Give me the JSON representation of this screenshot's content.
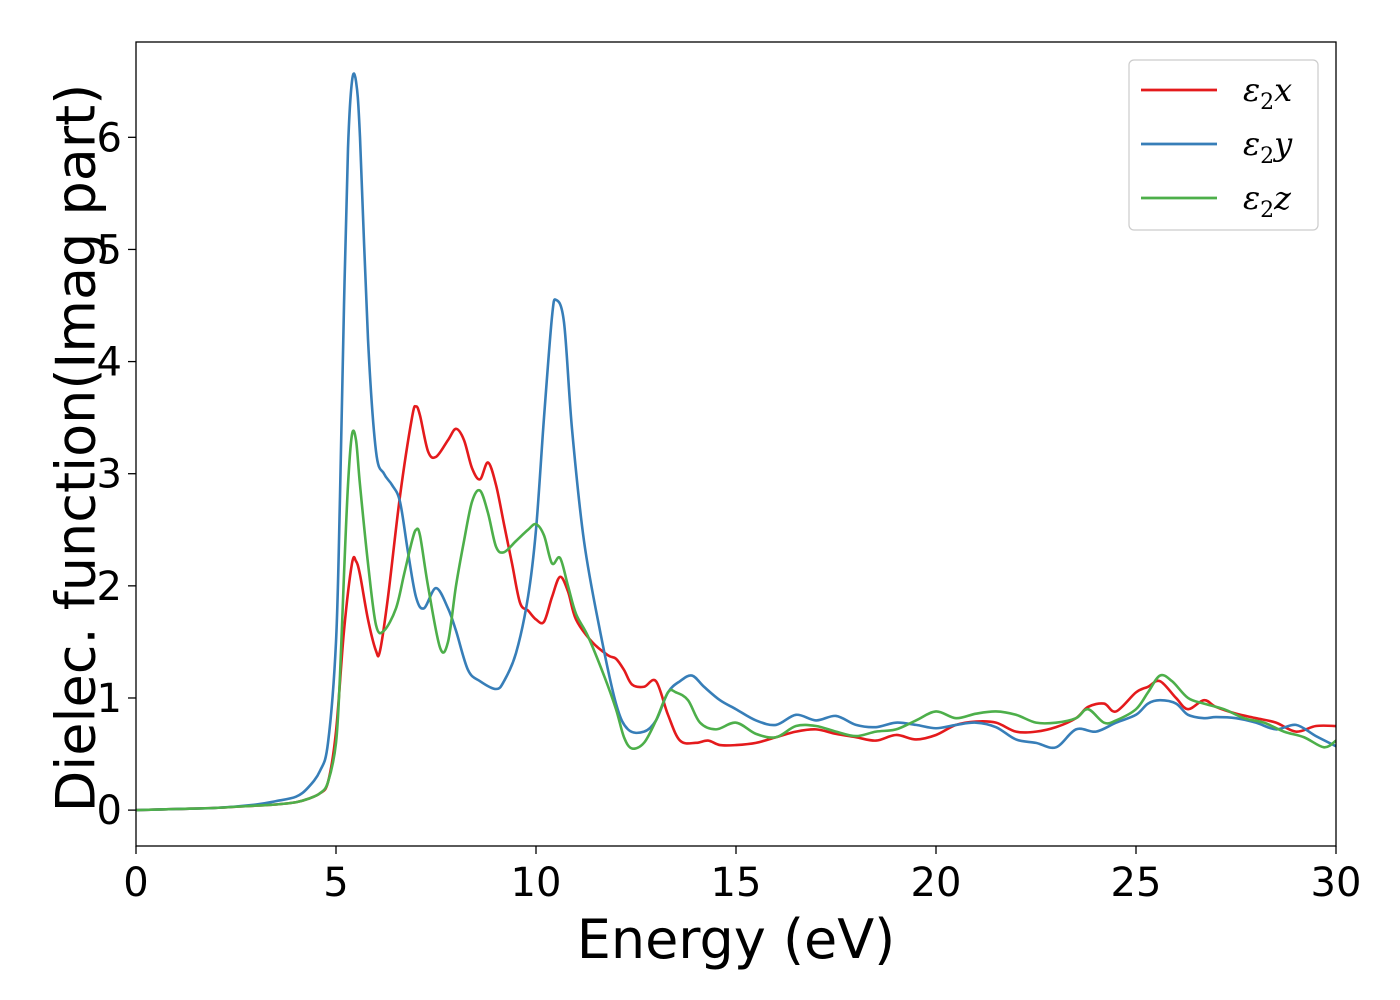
{
  "chart_data": {
    "type": "line",
    "title": "",
    "xlabel": "Energy (eV)",
    "ylabel": "Dielec. function(Imag part)",
    "xlim": [
      0,
      30
    ],
    "ylim": [
      -0.32,
      6.85
    ],
    "xticks": [
      0,
      5,
      10,
      15,
      20,
      25,
      30
    ],
    "yticks": [
      0,
      1,
      2,
      3,
      4,
      5,
      6
    ],
    "grid": false,
    "legend": "top-right",
    "series": [
      {
        "name": "ε₂x",
        "name_base": "ε",
        "name_sub": "2",
        "name_suffix": "x",
        "color": "#e41a1c",
        "x": [
          0,
          1,
          2,
          3,
          3.5,
          4,
          4.3,
          4.6,
          4.8,
          5,
          5.2,
          5.4,
          5.5,
          5.6,
          5.8,
          6,
          6.1,
          6.3,
          6.6,
          6.9,
          7,
          7.1,
          7.3,
          7.5,
          7.8,
          8,
          8.2,
          8.4,
          8.6,
          8.8,
          9,
          9.2,
          9.4,
          9.6,
          9.8,
          10,
          10.2,
          10.4,
          10.6,
          10.8,
          11,
          11.4,
          11.8,
          12,
          12.2,
          12.4,
          12.7,
          13,
          13.3,
          13.6,
          14,
          14.3,
          14.6,
          15,
          15.5,
          16,
          16.5,
          17,
          17.5,
          18,
          18.5,
          19,
          19.5,
          20,
          20.5,
          21,
          21.5,
          22,
          22.5,
          23,
          23.5,
          23.8,
          24.2,
          24.5,
          25,
          25.3,
          25.6,
          26,
          26.3,
          26.7,
          27,
          27.5,
          28,
          28.5,
          29,
          29.5,
          30
        ],
        "values": [
          0.0,
          0.01,
          0.02,
          0.04,
          0.05,
          0.07,
          0.1,
          0.15,
          0.25,
          0.7,
          1.6,
          2.2,
          2.22,
          2.1,
          1.7,
          1.42,
          1.42,
          1.9,
          2.8,
          3.5,
          3.6,
          3.52,
          3.2,
          3.15,
          3.3,
          3.4,
          3.3,
          3.05,
          2.95,
          3.1,
          2.9,
          2.55,
          2.2,
          1.85,
          1.78,
          1.7,
          1.68,
          1.9,
          2.08,
          1.95,
          1.7,
          1.5,
          1.38,
          1.35,
          1.25,
          1.12,
          1.1,
          1.15,
          0.85,
          0.62,
          0.6,
          0.62,
          0.58,
          0.58,
          0.6,
          0.65,
          0.7,
          0.72,
          0.68,
          0.65,
          0.62,
          0.67,
          0.63,
          0.67,
          0.76,
          0.79,
          0.78,
          0.7,
          0.7,
          0.74,
          0.82,
          0.92,
          0.95,
          0.88,
          1.05,
          1.1,
          1.15,
          1.0,
          0.9,
          0.98,
          0.92,
          0.86,
          0.82,
          0.78,
          0.7,
          0.75,
          0.75
        ]
      },
      {
        "name": "ε₂y",
        "name_base": "ε",
        "name_sub": "2",
        "name_suffix": "y",
        "color": "#377eb8",
        "x": [
          0,
          1,
          2,
          3,
          3.5,
          4,
          4.3,
          4.6,
          4.8,
          5,
          5.1,
          5.2,
          5.3,
          5.4,
          5.5,
          5.6,
          5.8,
          6,
          6.2,
          6.4,
          6.6,
          6.8,
          7,
          7.2,
          7.5,
          7.8,
          8,
          8.3,
          8.6,
          9,
          9.2,
          9.5,
          9.8,
          10,
          10.2,
          10.4,
          10.5,
          10.7,
          10.9,
          11.2,
          11.6,
          12,
          12.3,
          12.7,
          13,
          13.3,
          13.6,
          13.9,
          14.2,
          14.6,
          15,
          15.5,
          16,
          16.5,
          17,
          17.5,
          18,
          18.5,
          19,
          19.5,
          20,
          20.5,
          21,
          21.5,
          22,
          22.5,
          23,
          23.5,
          24,
          24.5,
          25,
          25.3,
          25.6,
          26,
          26.3,
          26.7,
          27,
          27.5,
          28,
          28.5,
          29,
          29.5,
          30
        ],
        "values": [
          0.0,
          0.01,
          0.02,
          0.05,
          0.08,
          0.12,
          0.2,
          0.35,
          0.6,
          1.5,
          2.8,
          4.5,
          5.9,
          6.5,
          6.5,
          6.0,
          4.2,
          3.2,
          3.0,
          2.9,
          2.75,
          2.3,
          1.9,
          1.8,
          1.98,
          1.8,
          1.6,
          1.25,
          1.15,
          1.08,
          1.15,
          1.4,
          1.9,
          2.5,
          3.5,
          4.4,
          4.55,
          4.35,
          3.4,
          2.4,
          1.6,
          0.95,
          0.72,
          0.7,
          0.8,
          1.05,
          1.15,
          1.2,
          1.1,
          0.98,
          0.9,
          0.8,
          0.76,
          0.85,
          0.8,
          0.84,
          0.76,
          0.74,
          0.78,
          0.76,
          0.73,
          0.76,
          0.78,
          0.74,
          0.63,
          0.6,
          0.56,
          0.72,
          0.7,
          0.78,
          0.85,
          0.95,
          0.98,
          0.95,
          0.85,
          0.82,
          0.83,
          0.82,
          0.78,
          0.72,
          0.76,
          0.66,
          0.57
        ]
      },
      {
        "name": "ε₂z",
        "name_base": "ε",
        "name_sub": "2",
        "name_suffix": "z",
        "color": "#4daf4a",
        "x": [
          0,
          1,
          2,
          3,
          3.5,
          4,
          4.3,
          4.6,
          4.8,
          5,
          5.1,
          5.2,
          5.3,
          5.4,
          5.5,
          5.6,
          5.8,
          6,
          6.2,
          6.5,
          6.7,
          6.9,
          7,
          7.1,
          7.3,
          7.6,
          7.8,
          8,
          8.2,
          8.4,
          8.6,
          8.8,
          9,
          9.2,
          9.5,
          9.8,
          10,
          10.2,
          10.4,
          10.6,
          10.8,
          11,
          11.3,
          11.7,
          12,
          12.2,
          12.4,
          12.7,
          13,
          13.3,
          13.5,
          13.8,
          14.1,
          14.5,
          15,
          15.5,
          16,
          16.5,
          17,
          17.5,
          18,
          18.5,
          19,
          19.5,
          20,
          20.5,
          21,
          21.5,
          22,
          22.5,
          23,
          23.5,
          23.8,
          24.2,
          24.5,
          25,
          25.3,
          25.6,
          25.9,
          26.3,
          26.7,
          27.2,
          27.7,
          28.2,
          28.7,
          29.2,
          29.7,
          30
        ],
        "values": [
          0.0,
          0.01,
          0.02,
          0.04,
          0.05,
          0.07,
          0.1,
          0.15,
          0.25,
          0.6,
          1.2,
          2.1,
          2.9,
          3.35,
          3.3,
          2.9,
          2.2,
          1.65,
          1.6,
          1.8,
          2.1,
          2.4,
          2.5,
          2.45,
          2.0,
          1.45,
          1.5,
          2.0,
          2.4,
          2.75,
          2.85,
          2.65,
          2.35,
          2.3,
          2.4,
          2.5,
          2.55,
          2.45,
          2.2,
          2.25,
          2.0,
          1.75,
          1.55,
          1.2,
          0.9,
          0.65,
          0.55,
          0.6,
          0.8,
          1.05,
          1.05,
          0.98,
          0.78,
          0.72,
          0.78,
          0.68,
          0.65,
          0.75,
          0.75,
          0.7,
          0.66,
          0.7,
          0.72,
          0.8,
          0.88,
          0.82,
          0.86,
          0.88,
          0.85,
          0.78,
          0.78,
          0.82,
          0.9,
          0.78,
          0.8,
          0.9,
          1.05,
          1.2,
          1.15,
          1.0,
          0.95,
          0.9,
          0.82,
          0.78,
          0.7,
          0.65,
          0.56,
          0.62
        ]
      }
    ]
  }
}
